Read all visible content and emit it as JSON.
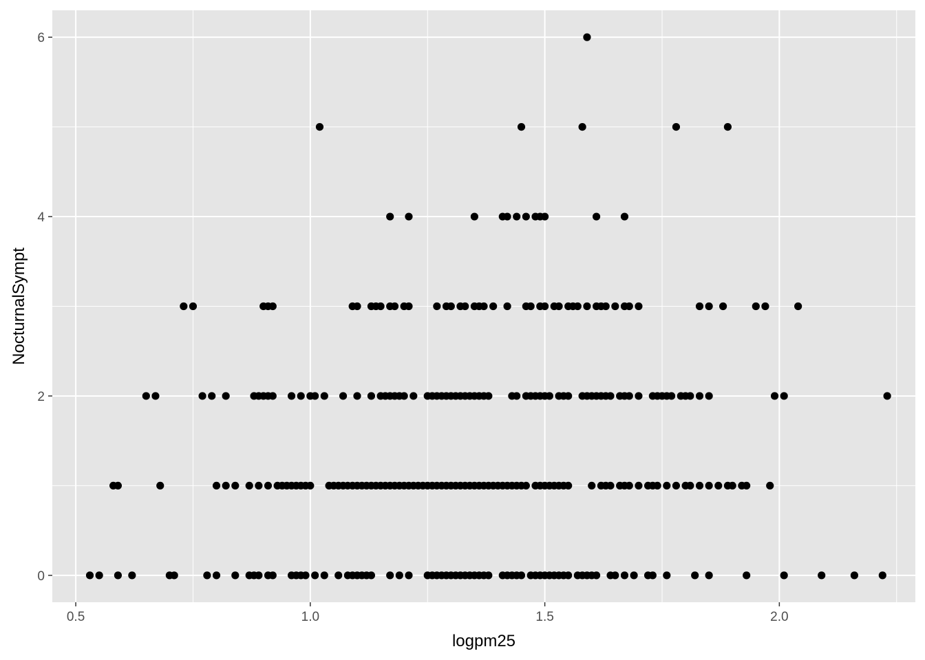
{
  "chart_data": {
    "type": "scatter",
    "title": "",
    "xlabel": "logpm25",
    "ylabel": "NocturnalSympt",
    "xlim": [
      0.45,
      2.29
    ],
    "ylim": [
      -0.3,
      6.3
    ],
    "x_ticks": [
      {
        "value": 0.5,
        "label": "0.5"
      },
      {
        "value": 1.0,
        "label": "1.0"
      },
      {
        "value": 1.5,
        "label": "1.5"
      },
      {
        "value": 2.0,
        "label": "2.0"
      }
    ],
    "y_ticks": [
      {
        "value": 0,
        "label": "0"
      },
      {
        "value": 2,
        "label": "2"
      },
      {
        "value": 4,
        "label": "4"
      },
      {
        "value": 6,
        "label": "6"
      }
    ],
    "grid": true,
    "colors": {
      "panel": "#e5e5e5",
      "grid": "#ffffff",
      "point": "#000000",
      "tick_text": "#4d4d4d"
    },
    "series": [
      {
        "points": [
          [
            0.53,
            0
          ],
          [
            0.55,
            0
          ],
          [
            0.59,
            0
          ],
          [
            0.62,
            0
          ],
          [
            0.7,
            0
          ],
          [
            0.71,
            0
          ],
          [
            0.78,
            0
          ],
          [
            0.8,
            0
          ],
          [
            0.84,
            0
          ],
          [
            0.87,
            0
          ],
          [
            0.88,
            0
          ],
          [
            0.89,
            0
          ],
          [
            0.91,
            0
          ],
          [
            0.92,
            0
          ],
          [
            0.96,
            0
          ],
          [
            0.97,
            0
          ],
          [
            0.98,
            0
          ],
          [
            0.99,
            0
          ],
          [
            1.01,
            0
          ],
          [
            1.03,
            0
          ],
          [
            1.06,
            0
          ],
          [
            1.08,
            0
          ],
          [
            1.09,
            0
          ],
          [
            1.1,
            0
          ],
          [
            1.11,
            0
          ],
          [
            1.12,
            0
          ],
          [
            1.13,
            0
          ],
          [
            1.17,
            0
          ],
          [
            1.19,
            0
          ],
          [
            1.21,
            0
          ],
          [
            1.25,
            0
          ],
          [
            1.26,
            0
          ],
          [
            1.27,
            0
          ],
          [
            1.28,
            0
          ],
          [
            1.29,
            0
          ],
          [
            1.3,
            0
          ],
          [
            1.31,
            0
          ],
          [
            1.32,
            0
          ],
          [
            1.33,
            0
          ],
          [
            1.34,
            0
          ],
          [
            1.35,
            0
          ],
          [
            1.36,
            0
          ],
          [
            1.37,
            0
          ],
          [
            1.38,
            0
          ],
          [
            1.41,
            0
          ],
          [
            1.42,
            0
          ],
          [
            1.43,
            0
          ],
          [
            1.44,
            0
          ],
          [
            1.45,
            0
          ],
          [
            1.47,
            0
          ],
          [
            1.48,
            0
          ],
          [
            1.49,
            0
          ],
          [
            1.5,
            0
          ],
          [
            1.51,
            0
          ],
          [
            1.52,
            0
          ],
          [
            1.53,
            0
          ],
          [
            1.54,
            0
          ],
          [
            1.55,
            0
          ],
          [
            1.57,
            0
          ],
          [
            1.58,
            0
          ],
          [
            1.59,
            0
          ],
          [
            1.6,
            0
          ],
          [
            1.61,
            0
          ],
          [
            1.64,
            0
          ],
          [
            1.65,
            0
          ],
          [
            1.67,
            0
          ],
          [
            1.69,
            0
          ],
          [
            1.72,
            0
          ],
          [
            1.73,
            0
          ],
          [
            1.76,
            0
          ],
          [
            1.82,
            0
          ],
          [
            1.85,
            0
          ],
          [
            1.93,
            0
          ],
          [
            2.01,
            0
          ],
          [
            2.09,
            0
          ],
          [
            2.16,
            0
          ],
          [
            2.22,
            0
          ],
          [
            0.58,
            1
          ],
          [
            0.59,
            1
          ],
          [
            0.68,
            1
          ],
          [
            0.8,
            1
          ],
          [
            0.82,
            1
          ],
          [
            0.84,
            1
          ],
          [
            0.87,
            1
          ],
          [
            0.89,
            1
          ],
          [
            0.91,
            1
          ],
          [
            0.93,
            1
          ],
          [
            0.94,
            1
          ],
          [
            0.95,
            1
          ],
          [
            0.96,
            1
          ],
          [
            0.97,
            1
          ],
          [
            0.98,
            1
          ],
          [
            0.99,
            1
          ],
          [
            1.0,
            1
          ],
          [
            1.04,
            1
          ],
          [
            1.05,
            1
          ],
          [
            1.06,
            1
          ],
          [
            1.07,
            1
          ],
          [
            1.08,
            1
          ],
          [
            1.09,
            1
          ],
          [
            1.1,
            1
          ],
          [
            1.11,
            1
          ],
          [
            1.12,
            1
          ],
          [
            1.13,
            1
          ],
          [
            1.14,
            1
          ],
          [
            1.15,
            1
          ],
          [
            1.16,
            1
          ],
          [
            1.17,
            1
          ],
          [
            1.18,
            1
          ],
          [
            1.19,
            1
          ],
          [
            1.2,
            1
          ],
          [
            1.21,
            1
          ],
          [
            1.22,
            1
          ],
          [
            1.23,
            1
          ],
          [
            1.24,
            1
          ],
          [
            1.25,
            1
          ],
          [
            1.26,
            1
          ],
          [
            1.27,
            1
          ],
          [
            1.28,
            1
          ],
          [
            1.29,
            1
          ],
          [
            1.3,
            1
          ],
          [
            1.31,
            1
          ],
          [
            1.32,
            1
          ],
          [
            1.33,
            1
          ],
          [
            1.34,
            1
          ],
          [
            1.35,
            1
          ],
          [
            1.36,
            1
          ],
          [
            1.37,
            1
          ],
          [
            1.38,
            1
          ],
          [
            1.39,
            1
          ],
          [
            1.4,
            1
          ],
          [
            1.41,
            1
          ],
          [
            1.42,
            1
          ],
          [
            1.43,
            1
          ],
          [
            1.44,
            1
          ],
          [
            1.45,
            1
          ],
          [
            1.46,
            1
          ],
          [
            1.48,
            1
          ],
          [
            1.49,
            1
          ],
          [
            1.5,
            1
          ],
          [
            1.51,
            1
          ],
          [
            1.52,
            1
          ],
          [
            1.53,
            1
          ],
          [
            1.54,
            1
          ],
          [
            1.55,
            1
          ],
          [
            1.6,
            1
          ],
          [
            1.62,
            1
          ],
          [
            1.63,
            1
          ],
          [
            1.64,
            1
          ],
          [
            1.66,
            1
          ],
          [
            1.67,
            1
          ],
          [
            1.68,
            1
          ],
          [
            1.7,
            1
          ],
          [
            1.72,
            1
          ],
          [
            1.73,
            1
          ],
          [
            1.74,
            1
          ],
          [
            1.76,
            1
          ],
          [
            1.78,
            1
          ],
          [
            1.8,
            1
          ],
          [
            1.81,
            1
          ],
          [
            1.83,
            1
          ],
          [
            1.85,
            1
          ],
          [
            1.87,
            1
          ],
          [
            1.89,
            1
          ],
          [
            1.9,
            1
          ],
          [
            1.92,
            1
          ],
          [
            1.93,
            1
          ],
          [
            1.98,
            1
          ],
          [
            0.65,
            2
          ],
          [
            0.67,
            2
          ],
          [
            0.77,
            2
          ],
          [
            0.79,
            2
          ],
          [
            0.82,
            2
          ],
          [
            0.88,
            2
          ],
          [
            0.89,
            2
          ],
          [
            0.9,
            2
          ],
          [
            0.91,
            2
          ],
          [
            0.92,
            2
          ],
          [
            0.96,
            2
          ],
          [
            0.98,
            2
          ],
          [
            1.0,
            2
          ],
          [
            1.01,
            2
          ],
          [
            1.03,
            2
          ],
          [
            1.07,
            2
          ],
          [
            1.1,
            2
          ],
          [
            1.13,
            2
          ],
          [
            1.15,
            2
          ],
          [
            1.16,
            2
          ],
          [
            1.17,
            2
          ],
          [
            1.18,
            2
          ],
          [
            1.19,
            2
          ],
          [
            1.2,
            2
          ],
          [
            1.22,
            2
          ],
          [
            1.25,
            2
          ],
          [
            1.26,
            2
          ],
          [
            1.27,
            2
          ],
          [
            1.28,
            2
          ],
          [
            1.29,
            2
          ],
          [
            1.3,
            2
          ],
          [
            1.31,
            2
          ],
          [
            1.32,
            2
          ],
          [
            1.33,
            2
          ],
          [
            1.34,
            2
          ],
          [
            1.35,
            2
          ],
          [
            1.36,
            2
          ],
          [
            1.37,
            2
          ],
          [
            1.38,
            2
          ],
          [
            1.43,
            2
          ],
          [
            1.44,
            2
          ],
          [
            1.46,
            2
          ],
          [
            1.47,
            2
          ],
          [
            1.48,
            2
          ],
          [
            1.49,
            2
          ],
          [
            1.5,
            2
          ],
          [
            1.51,
            2
          ],
          [
            1.53,
            2
          ],
          [
            1.54,
            2
          ],
          [
            1.55,
            2
          ],
          [
            1.58,
            2
          ],
          [
            1.59,
            2
          ],
          [
            1.6,
            2
          ],
          [
            1.61,
            2
          ],
          [
            1.62,
            2
          ],
          [
            1.63,
            2
          ],
          [
            1.64,
            2
          ],
          [
            1.66,
            2
          ],
          [
            1.67,
            2
          ],
          [
            1.68,
            2
          ],
          [
            1.7,
            2
          ],
          [
            1.73,
            2
          ],
          [
            1.74,
            2
          ],
          [
            1.75,
            2
          ],
          [
            1.76,
            2
          ],
          [
            1.77,
            2
          ],
          [
            1.79,
            2
          ],
          [
            1.8,
            2
          ],
          [
            1.81,
            2
          ],
          [
            1.83,
            2
          ],
          [
            1.85,
            2
          ],
          [
            1.99,
            2
          ],
          [
            2.01,
            2
          ],
          [
            2.23,
            2
          ],
          [
            0.73,
            3
          ],
          [
            0.75,
            3
          ],
          [
            0.9,
            3
          ],
          [
            0.91,
            3
          ],
          [
            0.92,
            3
          ],
          [
            1.09,
            3
          ],
          [
            1.1,
            3
          ],
          [
            1.13,
            3
          ],
          [
            1.14,
            3
          ],
          [
            1.15,
            3
          ],
          [
            1.17,
            3
          ],
          [
            1.18,
            3
          ],
          [
            1.2,
            3
          ],
          [
            1.21,
            3
          ],
          [
            1.27,
            3
          ],
          [
            1.29,
            3
          ],
          [
            1.3,
            3
          ],
          [
            1.32,
            3
          ],
          [
            1.33,
            3
          ],
          [
            1.35,
            3
          ],
          [
            1.36,
            3
          ],
          [
            1.37,
            3
          ],
          [
            1.39,
            3
          ],
          [
            1.42,
            3
          ],
          [
            1.46,
            3
          ],
          [
            1.47,
            3
          ],
          [
            1.49,
            3
          ],
          [
            1.5,
            3
          ],
          [
            1.52,
            3
          ],
          [
            1.53,
            3
          ],
          [
            1.55,
            3
          ],
          [
            1.56,
            3
          ],
          [
            1.57,
            3
          ],
          [
            1.59,
            3
          ],
          [
            1.61,
            3
          ],
          [
            1.62,
            3
          ],
          [
            1.63,
            3
          ],
          [
            1.65,
            3
          ],
          [
            1.67,
            3
          ],
          [
            1.68,
            3
          ],
          [
            1.7,
            3
          ],
          [
            1.83,
            3
          ],
          [
            1.85,
            3
          ],
          [
            1.88,
            3
          ],
          [
            1.95,
            3
          ],
          [
            1.97,
            3
          ],
          [
            2.04,
            3
          ],
          [
            1.17,
            4
          ],
          [
            1.21,
            4
          ],
          [
            1.35,
            4
          ],
          [
            1.41,
            4
          ],
          [
            1.42,
            4
          ],
          [
            1.44,
            4
          ],
          [
            1.46,
            4
          ],
          [
            1.48,
            4
          ],
          [
            1.49,
            4
          ],
          [
            1.5,
            4
          ],
          [
            1.61,
            4
          ],
          [
            1.67,
            4
          ],
          [
            1.02,
            5
          ],
          [
            1.45,
            5
          ],
          [
            1.58,
            5
          ],
          [
            1.78,
            5
          ],
          [
            1.89,
            5
          ],
          [
            1.59,
            6
          ]
        ]
      }
    ]
  }
}
